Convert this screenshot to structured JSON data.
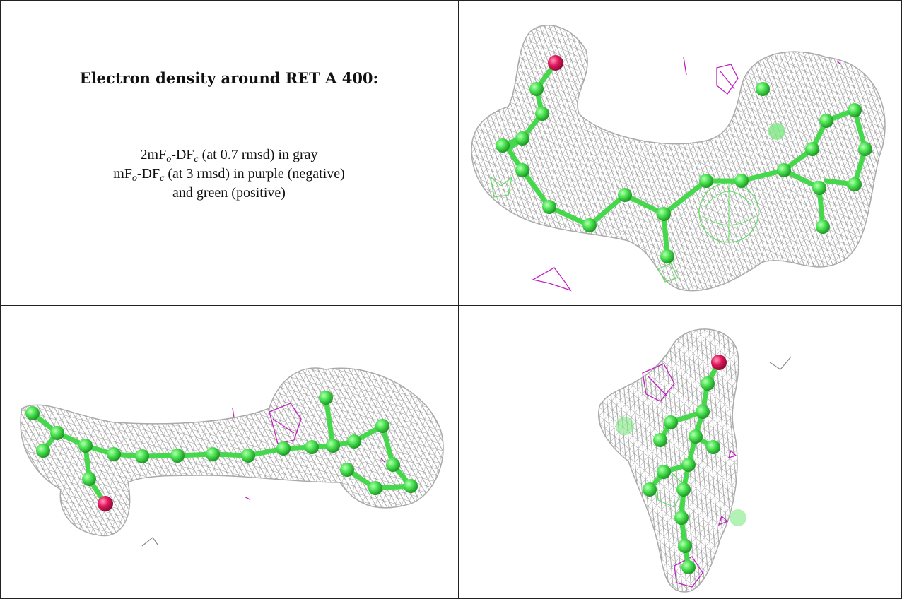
{
  "title": "Electron density around RET A 400:",
  "legend": {
    "line1": {
      "prefix": "2mF",
      "sub1": "o",
      "mid": "-DF",
      "sub2": "c",
      "suffix": " (at 0.7 rmsd) in gray"
    },
    "line2": {
      "prefix": "mF",
      "sub1": "o",
      "mid": "-DF",
      "sub2": "c",
      "suffix": " (at 3 rmsd) in purple (negative)"
    },
    "line3": "and green (positive)"
  },
  "colors": {
    "mesh_gray": "#a9a9a9",
    "atom_green": "#49e24f",
    "oxygen_red": "#e4185e",
    "negative_purple": "#c21fc3",
    "positive_green": "#55e05a"
  },
  "views": [
    {
      "name": "view-top-right",
      "description_icon": "molecule-mesh-icon"
    },
    {
      "name": "view-bottom-left",
      "description_icon": "molecule-mesh-icon"
    },
    {
      "name": "view-bottom-right",
      "description_icon": "molecule-mesh-icon"
    }
  ]
}
